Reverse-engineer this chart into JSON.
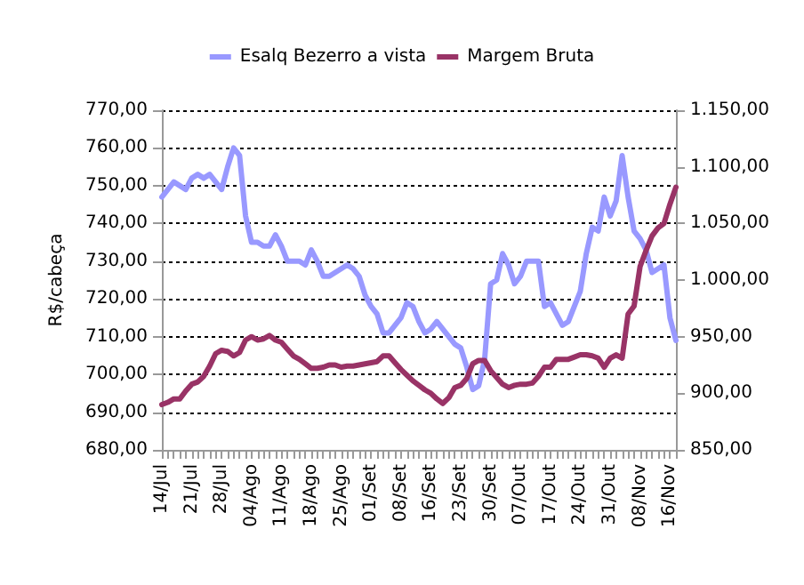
{
  "chart_data": {
    "type": "line",
    "ylabel": "R$/cabeça",
    "categories": [
      "14/Jul",
      null,
      null,
      null,
      null,
      "21/Jul",
      null,
      null,
      null,
      null,
      "28/Jul",
      null,
      null,
      null,
      null,
      "04/Ago",
      null,
      null,
      null,
      null,
      "11/Ago",
      null,
      null,
      null,
      null,
      "18/Ago",
      null,
      null,
      null,
      null,
      "25/Ago",
      null,
      null,
      null,
      null,
      "01/Set",
      null,
      null,
      null,
      null,
      "08/Set",
      null,
      null,
      null,
      null,
      "16/Set",
      null,
      null,
      null,
      null,
      "23/Set",
      null,
      null,
      null,
      null,
      "30/Set",
      null,
      null,
      null,
      null,
      "07/Out",
      null,
      null,
      null,
      null,
      "17/Out",
      null,
      null,
      null,
      null,
      "24/Out",
      null,
      null,
      null,
      null,
      "31/Out",
      null,
      null,
      null,
      null,
      "08/Nov",
      null,
      null,
      null,
      null,
      "16/Nov",
      null
    ],
    "series": [
      {
        "name": "Esalq Bezerro a vista",
        "color": "#9999ff",
        "values": [
          747,
          749,
          751,
          750,
          749,
          752,
          753,
          752,
          753,
          751,
          749,
          755,
          760,
          758,
          742,
          735,
          735,
          734,
          734,
          737,
          734,
          730,
          730,
          730,
          729,
          733,
          730,
          726,
          726,
          727,
          728,
          729,
          728,
          726,
          721,
          718,
          716,
          711,
          711,
          713,
          715,
          719,
          718,
          714,
          711,
          712,
          714,
          712,
          710,
          708,
          707,
          702,
          696,
          697,
          704,
          724,
          725,
          732,
          729,
          724,
          726,
          730,
          730,
          730,
          718,
          719,
          716,
          713,
          714,
          718,
          722,
          732,
          739,
          738,
          747,
          742,
          746,
          758,
          747,
          738,
          736,
          733,
          727,
          728,
          729,
          715,
          709
        ]
      },
      {
        "name": "Margem Bruta",
        "color": "#993366",
        "axis": "y2",
        "values": [
          890,
          892,
          895,
          895,
          902,
          908,
          910,
          915,
          924,
          935,
          938,
          937,
          933,
          936,
          947,
          950,
          947,
          948,
          951,
          947,
          945,
          939,
          933,
          930,
          926,
          922,
          922,
          923,
          925,
          925,
          923,
          924,
          924,
          925,
          926,
          927,
          928,
          933,
          933,
          927,
          921,
          916,
          911,
          907,
          903,
          900,
          895,
          891,
          896,
          905,
          907,
          913,
          926,
          929,
          929,
          920,
          914,
          908,
          905,
          907,
          908,
          908,
          909,
          915,
          923,
          923,
          930,
          930,
          930,
          932,
          934,
          934,
          933,
          931,
          923,
          931,
          934,
          931,
          970,
          977,
          1012,
          1026,
          1039,
          1046,
          1050,
          1067,
          1082
        ]
      }
    ],
    "ylim": [
      680,
      770
    ],
    "yticks": [
      {
        "value": 680,
        "label": "680,00"
      },
      {
        "value": 690,
        "label": "690,00"
      },
      {
        "value": 700,
        "label": "700,00"
      },
      {
        "value": 710,
        "label": "710,00"
      },
      {
        "value": 720,
        "label": "720,00"
      },
      {
        "value": 730,
        "label": "730,00"
      },
      {
        "value": 740,
        "label": "740,00"
      },
      {
        "value": 750,
        "label": "750,00"
      },
      {
        "value": 760,
        "label": "760,00"
      },
      {
        "value": 770,
        "label": "770,00"
      }
    ],
    "y2lim": [
      850,
      1150
    ],
    "y2ticks": [
      {
        "value": 850,
        "label": "850,00"
      },
      {
        "value": 900,
        "label": "900,00"
      },
      {
        "value": 950,
        "label": "950,00"
      },
      {
        "value": 1000,
        "label": "1.000,00"
      },
      {
        "value": 1050,
        "label": "1.050,00"
      },
      {
        "value": 1100,
        "label": "1.100,00"
      },
      {
        "value": 1150,
        "label": "1.150,00"
      }
    ],
    "grid": "y",
    "legend": "top",
    "marker": "none",
    "line_style": "solid"
  }
}
